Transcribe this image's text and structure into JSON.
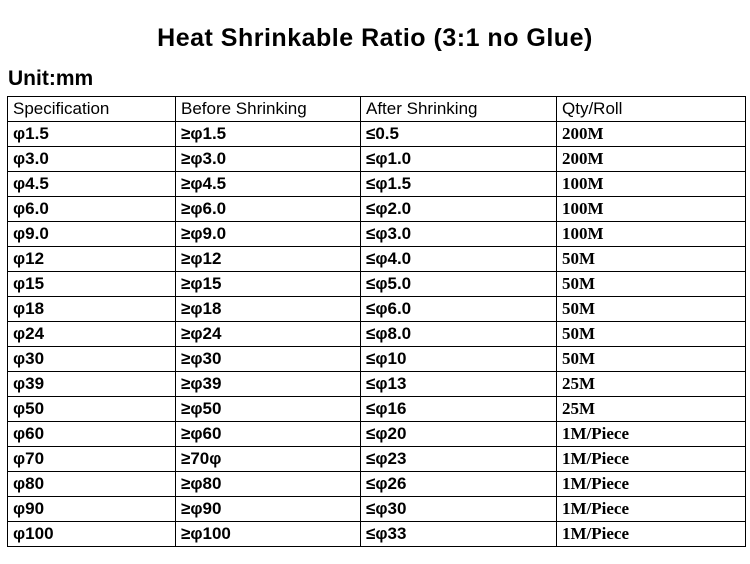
{
  "title": "Heat Shrinkable Ratio (3:1 no Glue)",
  "unit_label": "Unit:mm",
  "colors": {
    "background": "#ffffff",
    "text": "#000000",
    "border": "#000000"
  },
  "chart_data": {
    "type": "table",
    "title": "Heat Shrinkable Ratio (3:1 no Glue)",
    "unit": "mm",
    "columns": [
      "Specification",
      "Before Shrinking",
      "After Shrinking",
      "Qty/Roll"
    ],
    "column_keys": [
      "specification",
      "before-shrinking",
      "after-shrinking",
      "qty-roll"
    ],
    "rows": [
      [
        "φ1.5",
        "≥φ1.5",
        "≤0.5",
        "200M"
      ],
      [
        "φ3.0",
        "≥φ3.0",
        "≤φ1.0",
        "200M"
      ],
      [
        "φ4.5",
        "≥φ4.5",
        "≤φ1.5",
        "100M"
      ],
      [
        "φ6.0",
        "≥φ6.0",
        "≤φ2.0",
        "100M"
      ],
      [
        "φ9.0",
        "≥φ9.0",
        "≤φ3.0",
        "100M"
      ],
      [
        "φ12",
        "≥φ12",
        "≤φ4.0",
        "50M"
      ],
      [
        "φ15",
        "≥φ15",
        "≤φ5.0",
        "50M"
      ],
      [
        "φ18",
        "≥φ18",
        "≤φ6.0",
        "50M"
      ],
      [
        "φ24",
        "≥φ24",
        "≤φ8.0",
        "50M"
      ],
      [
        "φ30",
        "≥φ30",
        "≤φ10",
        "50M"
      ],
      [
        "φ39",
        "≥φ39",
        "≤φ13",
        "25M"
      ],
      [
        "φ50",
        "≥φ50",
        "≤φ16",
        "25M"
      ],
      [
        "φ60",
        "≥φ60",
        "≤φ20",
        "1M/Piece"
      ],
      [
        "φ70",
        "≥70φ",
        "≤φ23",
        "1M/Piece"
      ],
      [
        "φ80",
        "≥φ80",
        "≤φ26",
        "1M/Piece"
      ],
      [
        "φ90",
        "≥φ90",
        "≤φ30",
        "1M/Piece"
      ],
      [
        "φ100",
        "≥φ100",
        "≤φ33",
        "1M/Piece"
      ]
    ]
  }
}
